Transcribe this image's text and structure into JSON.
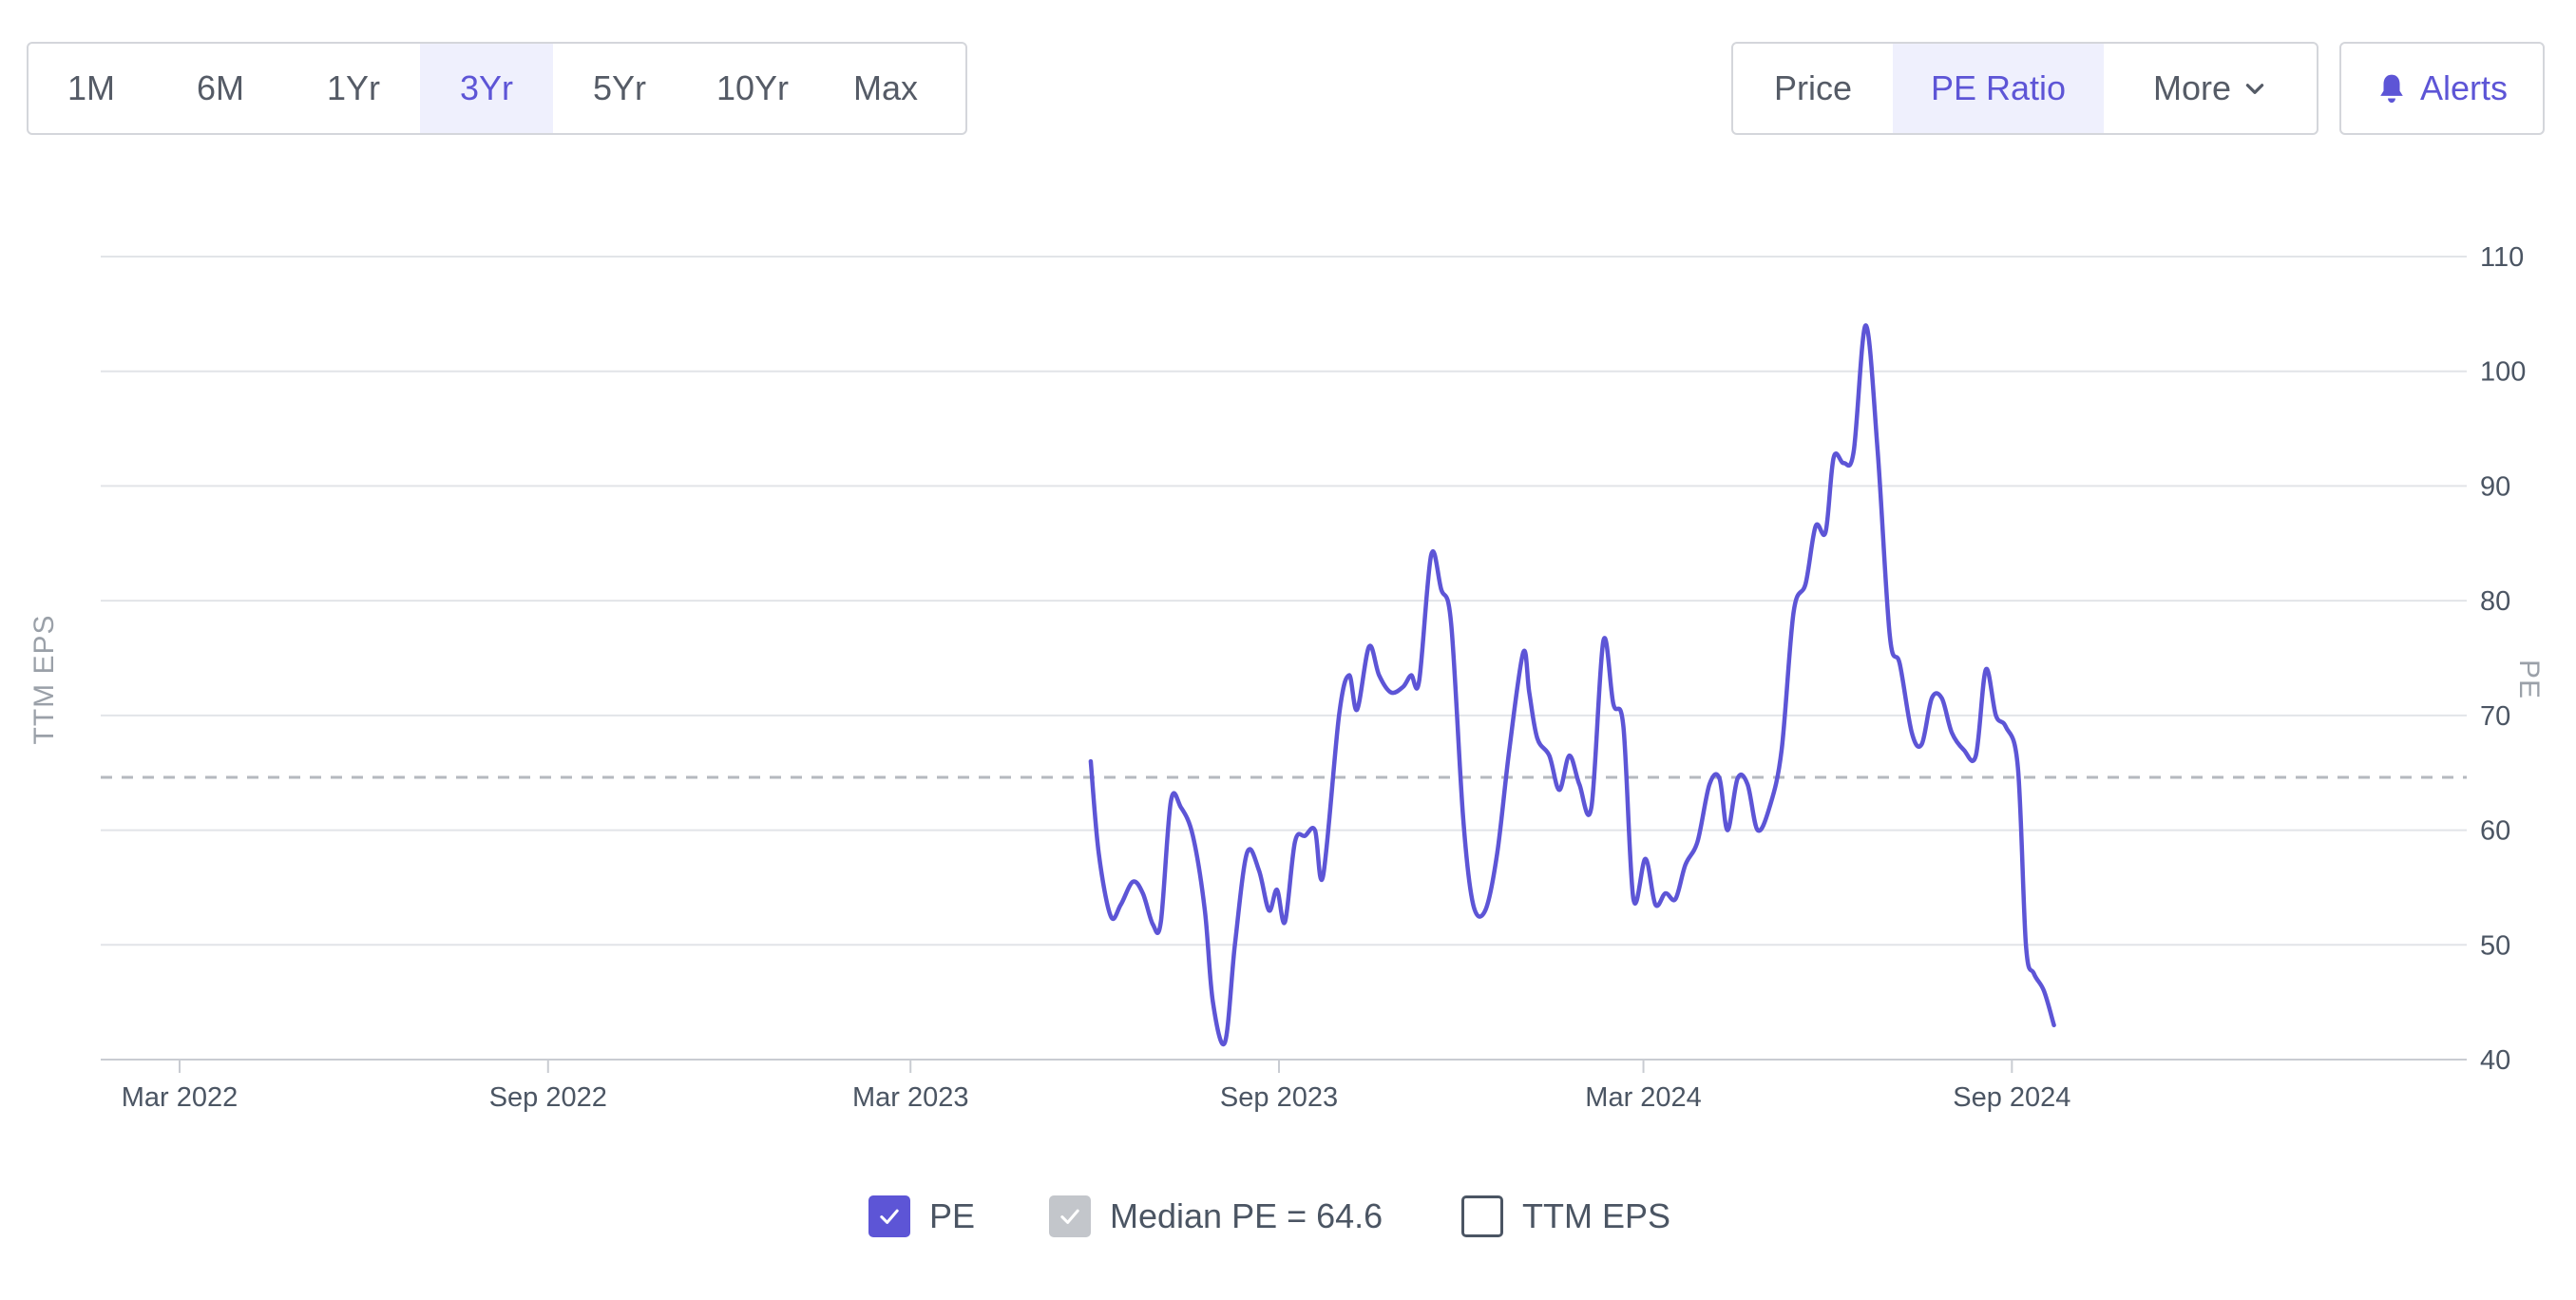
{
  "toolbar": {
    "ranges": [
      "1M",
      "6M",
      "1Yr",
      "3Yr",
      "5Yr",
      "10Yr",
      "Max"
    ],
    "active_range": "3Yr",
    "views": {
      "price": "Price",
      "pe_ratio": "PE Ratio",
      "more": "More"
    },
    "active_view": "PE Ratio",
    "alerts_label": "Alerts"
  },
  "colors": {
    "accent": "#5d55d6",
    "active_bg": "#eff0fd",
    "median": "#b5b9bf"
  },
  "legend": {
    "pe": "PE",
    "median": "Median PE = 64.6",
    "ttm_eps": "TTM EPS"
  },
  "chart_data": {
    "type": "line",
    "title": "",
    "ylabel_left": "TTM EPS",
    "ylabel_right": "PE",
    "y_right_ticks": [
      40,
      50,
      60,
      70,
      80,
      90,
      100,
      110
    ],
    "ylim": [
      40,
      110
    ],
    "xlim": [
      "2022-02-01",
      "2025-03-31"
    ],
    "x_ticks": [
      {
        "label": "Mar 2022",
        "date": "2022-03-01"
      },
      {
        "label": "Sep 2022",
        "date": "2022-09-01"
      },
      {
        "label": "Mar 2023",
        "date": "2023-03-01"
      },
      {
        "label": "Sep 2023",
        "date": "2023-09-01"
      },
      {
        "label": "Mar 2024",
        "date": "2024-03-01"
      },
      {
        "label": "Sep 2024",
        "date": "2024-09-01"
      }
    ],
    "median_pe": 64.6,
    "grid": true,
    "legend_position": "bottom",
    "series": [
      {
        "name": "PE",
        "visible": true,
        "points": [
          [
            "2023-05-30",
            66.0
          ],
          [
            "2023-06-03",
            58.0
          ],
          [
            "2023-06-09",
            52.5
          ],
          [
            "2023-06-14",
            53.5
          ],
          [
            "2023-06-20",
            55.5
          ],
          [
            "2023-06-25",
            54.5
          ],
          [
            "2023-06-30",
            51.8
          ],
          [
            "2023-07-04",
            52.0
          ],
          [
            "2023-07-09",
            62.5
          ],
          [
            "2023-07-14",
            62.0
          ],
          [
            "2023-07-20",
            59.5
          ],
          [
            "2023-07-26",
            53.0
          ],
          [
            "2023-07-30",
            45.0
          ],
          [
            "2023-08-05",
            41.5
          ],
          [
            "2023-08-10",
            50.0
          ],
          [
            "2023-08-16",
            58.0
          ],
          [
            "2023-08-22",
            56.5
          ],
          [
            "2023-08-27",
            53.0
          ],
          [
            "2023-08-31",
            54.8
          ],
          [
            "2023-09-04",
            52.0
          ],
          [
            "2023-09-09",
            59.0
          ],
          [
            "2023-09-14",
            59.5
          ],
          [
            "2023-09-19",
            60.0
          ],
          [
            "2023-09-23",
            56.0
          ],
          [
            "2023-10-01",
            70.0
          ],
          [
            "2023-10-06",
            73.5
          ],
          [
            "2023-10-10",
            70.5
          ],
          [
            "2023-10-16",
            76.0
          ],
          [
            "2023-10-21",
            73.5
          ],
          [
            "2023-10-27",
            72.0
          ],
          [
            "2023-11-02",
            72.5
          ],
          [
            "2023-11-06",
            73.5
          ],
          [
            "2023-11-10",
            73.0
          ],
          [
            "2023-11-16",
            84.0
          ],
          [
            "2023-11-21",
            81.0
          ],
          [
            "2023-11-26",
            78.0
          ],
          [
            "2023-12-02",
            61.0
          ],
          [
            "2023-12-07",
            53.5
          ],
          [
            "2023-12-13",
            53.0
          ],
          [
            "2023-12-19",
            58.0
          ],
          [
            "2023-12-25",
            67.0
          ],
          [
            "2024-01-01",
            75.5
          ],
          [
            "2024-01-04",
            72.0
          ],
          [
            "2024-01-08",
            68.0
          ],
          [
            "2024-01-14",
            66.5
          ],
          [
            "2024-01-19",
            63.5
          ],
          [
            "2024-01-24",
            66.5
          ],
          [
            "2024-01-29",
            64.0
          ],
          [
            "2024-02-04",
            62.0
          ],
          [
            "2024-02-10",
            76.5
          ],
          [
            "2024-02-15",
            71.0
          ],
          [
            "2024-02-20",
            69.0
          ],
          [
            "2024-02-25",
            54.0
          ],
          [
            "2024-03-02",
            57.5
          ],
          [
            "2024-03-07",
            53.5
          ],
          [
            "2024-03-12",
            54.5
          ],
          [
            "2024-03-17",
            54.0
          ],
          [
            "2024-03-22",
            57.0
          ],
          [
            "2024-03-28",
            59.0
          ],
          [
            "2024-04-03",
            64.0
          ],
          [
            "2024-04-08",
            64.5
          ],
          [
            "2024-04-12",
            60.0
          ],
          [
            "2024-04-17",
            64.5
          ],
          [
            "2024-04-22",
            64.0
          ],
          [
            "2024-04-27",
            60.0
          ],
          [
            "2024-05-03",
            62.0
          ],
          [
            "2024-05-09",
            67.0
          ],
          [
            "2024-05-15",
            79.0
          ],
          [
            "2024-05-21",
            81.5
          ],
          [
            "2024-05-26",
            86.5
          ],
          [
            "2024-05-31",
            86.0
          ],
          [
            "2024-06-04",
            92.5
          ],
          [
            "2024-06-09",
            92.0
          ],
          [
            "2024-06-14",
            93.0
          ],
          [
            "2024-06-20",
            104.0
          ],
          [
            "2024-06-26",
            93.0
          ],
          [
            "2024-07-02",
            77.0
          ],
          [
            "2024-07-07",
            74.5
          ],
          [
            "2024-07-13",
            68.5
          ],
          [
            "2024-07-18",
            67.5
          ],
          [
            "2024-07-23",
            71.5
          ],
          [
            "2024-07-28",
            71.5
          ],
          [
            "2024-08-02",
            68.5
          ],
          [
            "2024-08-08",
            67.0
          ],
          [
            "2024-08-14",
            66.5
          ],
          [
            "2024-08-19",
            74.0
          ],
          [
            "2024-08-24",
            70.0
          ],
          [
            "2024-08-29",
            69.0
          ],
          [
            "2024-09-04",
            65.5
          ],
          [
            "2024-09-08",
            50.0
          ],
          [
            "2024-09-12",
            47.5
          ],
          [
            "2024-09-17",
            46.0
          ],
          [
            "2024-09-22",
            43.0
          ]
        ]
      },
      {
        "name": "Median PE = 64.6",
        "visible": true,
        "value": 64.6
      },
      {
        "name": "TTM EPS",
        "visible": false,
        "values": []
      }
    ]
  }
}
